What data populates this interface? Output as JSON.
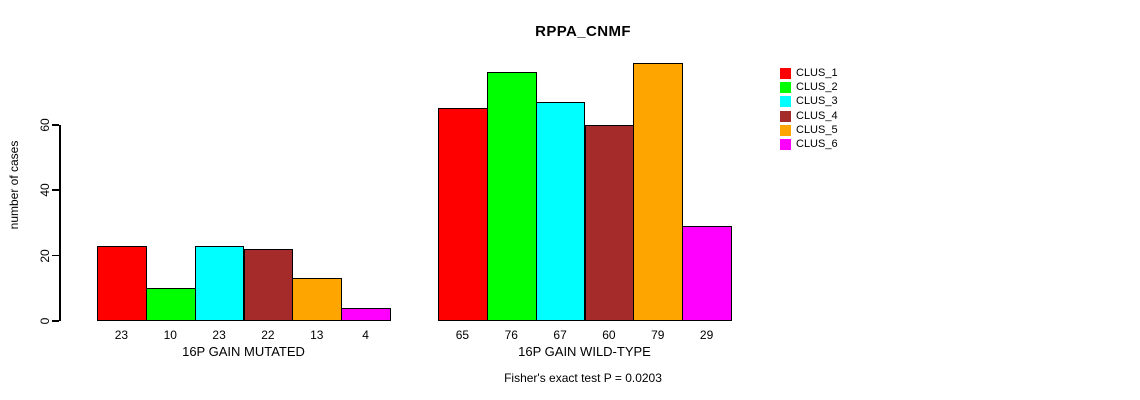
{
  "chart_data": {
    "type": "bar",
    "title": "RPPA_CNMF",
    "ylabel": "number of cases",
    "ylim": [
      0,
      80
    ],
    "yticks": [
      0,
      20,
      40,
      60
    ],
    "grid": false,
    "legend_position": "right",
    "categories": [
      "16P GAIN MUTATED",
      "16P GAIN WILD-TYPE"
    ],
    "series": [
      {
        "name": "CLUS_1",
        "color": "#FF0000",
        "values": [
          23,
          65
        ]
      },
      {
        "name": "CLUS_2",
        "color": "#00FF00",
        "values": [
          10,
          76
        ]
      },
      {
        "name": "CLUS_3",
        "color": "#00FFFF",
        "values": [
          23,
          67
        ]
      },
      {
        "name": "CLUS_4",
        "color": "#A52A2A",
        "values": [
          22,
          60
        ]
      },
      {
        "name": "CLUS_5",
        "color": "#FFA500",
        "values": [
          13,
          79
        ]
      },
      {
        "name": "CLUS_6",
        "color": "#FF00FF",
        "values": [
          4,
          29
        ]
      }
    ],
    "bar_value_labels_shown": true,
    "annotation": "Fisher's exact test P = 0.0203"
  }
}
